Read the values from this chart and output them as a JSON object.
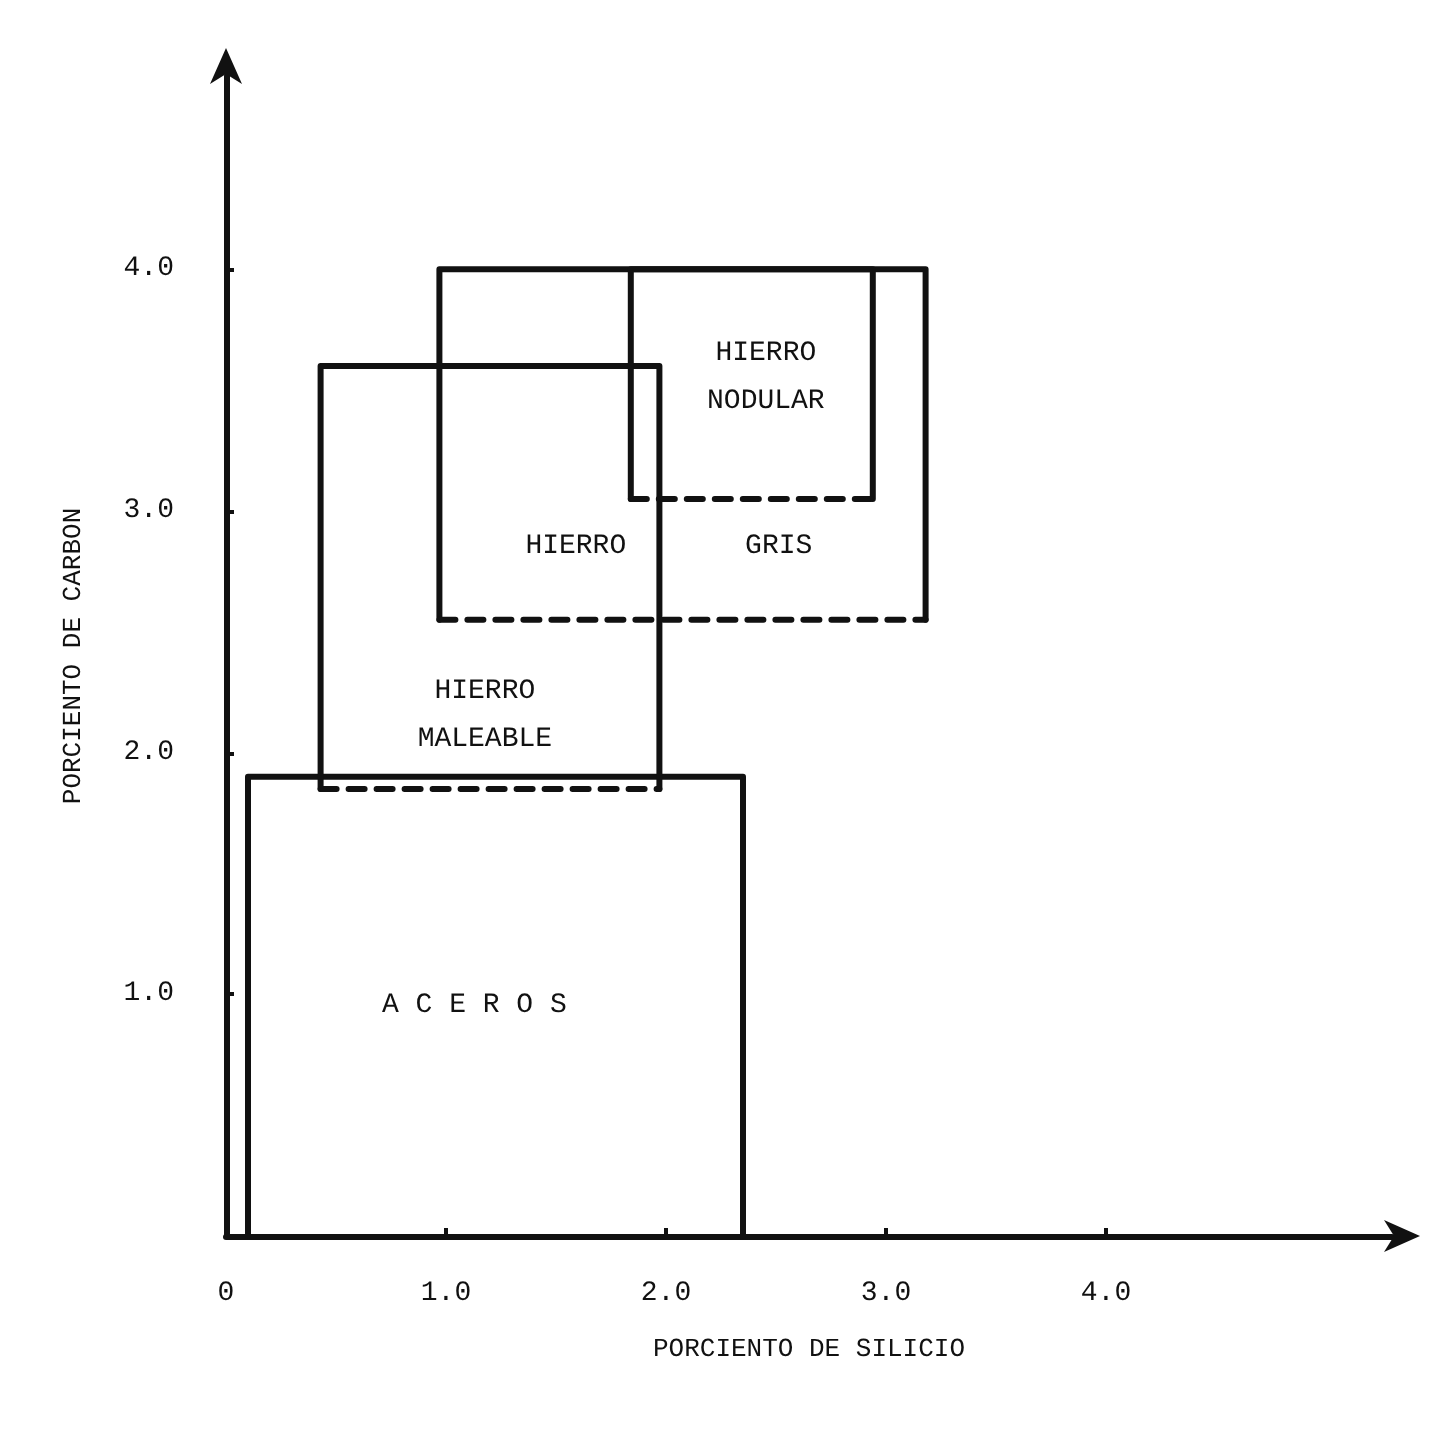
{
  "chart_data": {
    "type": "line",
    "xlabel": "PORCIENTO DE SILICIO",
    "ylabel": "PORCIENTO DE CARBON",
    "xlim": [
      0,
      5.3
    ],
    "ylim": [
      0,
      4.8
    ],
    "xticks": [
      0,
      {
        "value": 1,
        "label": "1.0"
      },
      {
        "value": 2,
        "label": "2.0"
      },
      {
        "value": 3,
        "label": "3.0"
      },
      {
        "value": 4,
        "label": "4.0"
      }
    ],
    "yticks": [
      {
        "value": 1,
        "label": "1.0"
      },
      {
        "value": 2,
        "label": "2.0"
      },
      {
        "value": 3,
        "label": "3.0"
      },
      {
        "value": 4,
        "label": "4.0"
      }
    ],
    "grid": false,
    "marker": "none",
    "series": [
      {
        "color": "#111111",
        "line_style": "solid",
        "x": [
          0.1,
          0.1,
          2.35,
          2.35
        ],
        "values": [
          0,
          1.9,
          1.9,
          0
        ]
      },
      {
        "color": "#111111",
        "line_style": "solid",
        "x": [
          0.97,
          0.97,
          3.18,
          3.18
        ],
        "values": [
          2.55,
          4.0,
          4.0,
          2.55
        ]
      },
      {
        "color": "#111111",
        "line_style": "dashed",
        "x": [
          0.97,
          3.18
        ],
        "values": [
          2.55,
          2.55
        ]
      },
      {
        "color": "#111111",
        "line_style": "solid",
        "x": [
          0.43,
          0.43,
          1.97,
          1.97
        ],
        "values": [
          1.85,
          3.6,
          3.6,
          1.85
        ]
      },
      {
        "color": "#111111",
        "line_style": "dashed",
        "x": [
          0.43,
          1.97
        ],
        "values": [
          1.85,
          1.85
        ]
      },
      {
        "color": "#111111",
        "line_style": "solid",
        "x": [
          1.84,
          1.84,
          2.94,
          2.94
        ],
        "values": [
          3.05,
          4.0,
          4.0,
          3.05
        ]
      },
      {
        "color": "#111111",
        "line_style": "dashed",
        "x": [
          1.84,
          2.94
        ],
        "values": [
          3.05,
          3.05
        ]
      }
    ],
    "annotations": [
      "HIERRO\nNODULAR",
      "HIERRO",
      "GRIS",
      "HIERRO\nMALEABLE",
      "A C E R O S"
    ]
  }
}
